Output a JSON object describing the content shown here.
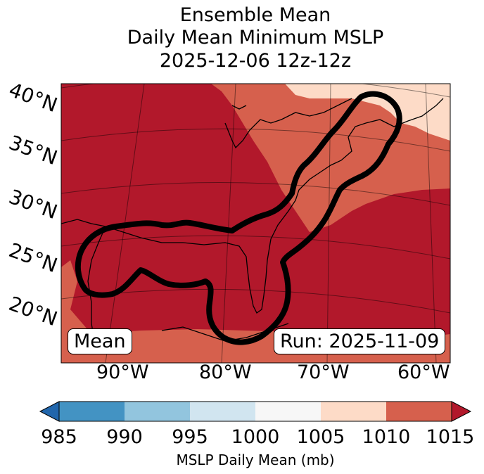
{
  "title": {
    "line1": "Ensemble Mean",
    "line2": "Daily Mean Minimum MSLP",
    "line3": "2025-12-06 12z-12z"
  },
  "map": {
    "latitude_labels": [
      "40°N",
      "35°N",
      "30°N",
      "25°N",
      "20°N"
    ],
    "longitude_labels": [
      "90°W",
      "80°W",
      "70°W",
      "60°W"
    ],
    "stat_box": "Mean",
    "run_box": "Run: 2025-11-09",
    "colors": {
      "c1005_1010": "#fddbc7",
      "c1010_1015": "#d6604d",
      "c1015_plus": "#b2182b",
      "contour": "#000000"
    }
  },
  "colorbar": {
    "label": "MSLP Daily Mean (mb)",
    "ticks": [
      "985",
      "990",
      "995",
      "1000",
      "1005",
      "1010",
      "1015"
    ],
    "colors": [
      "#2166ac",
      "#4393c3",
      "#92c5de",
      "#d1e5f0",
      "#f7f7f7",
      "#fddbc7",
      "#d6604d",
      "#b2182b"
    ]
  }
}
